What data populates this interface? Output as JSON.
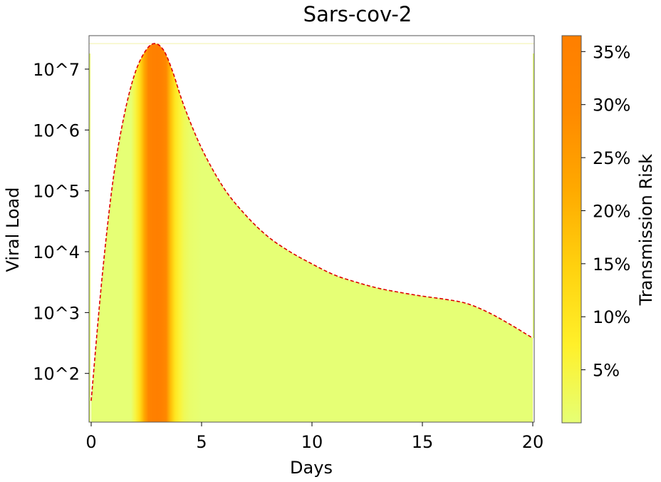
{
  "chart_data": {
    "type": "area",
    "title": "Sars-cov-2",
    "xlabel": "Days",
    "ylabel": "Viral Load",
    "colorbar_label": "Transmission Risk",
    "xlim": [
      0,
      20
    ],
    "ylim_log10": [
      1.2,
      7.55
    ],
    "y_scale": "log",
    "x_ticks": [
      0,
      5,
      10,
      15,
      20
    ],
    "x_tick_labels": [
      "0",
      "5",
      "10",
      "15",
      "20"
    ],
    "y_ticks_log10": [
      2,
      3,
      4,
      5,
      6,
      7
    ],
    "y_tick_labels": [
      "10^2",
      "10^3",
      "10^4",
      "10^5",
      "10^6",
      "10^7"
    ],
    "colorbar_range": [
      0,
      36.5
    ],
    "colorbar_ticks": [
      5,
      10,
      15,
      20,
      25,
      30,
      35
    ],
    "colorbar_tick_labels": [
      "5%",
      "10%",
      "15%",
      "20%",
      "25%",
      "30%",
      "35%"
    ],
    "colormap": [
      "#e6ff75",
      "#fff02a",
      "#ffd20f",
      "#ffaa00",
      "#ff8a00",
      "#ff7f00"
    ],
    "curve_color": "#dd0000",
    "viral_load_curve": {
      "x": [
        0,
        0.5,
        1,
        1.5,
        2,
        2.5,
        2.9,
        3.3,
        3.7,
        4.2,
        5,
        6,
        7,
        8,
        9,
        10,
        11,
        12,
        13,
        14,
        15,
        16,
        17,
        18,
        19,
        20
      ],
      "log10_y": [
        1.55,
        3.6,
        5.2,
        6.25,
        6.95,
        7.32,
        7.42,
        7.3,
        6.95,
        6.4,
        5.7,
        5.05,
        4.6,
        4.25,
        4.0,
        3.8,
        3.62,
        3.5,
        3.4,
        3.33,
        3.27,
        3.22,
        3.15,
        3.0,
        2.8,
        2.58
      ]
    },
    "transmission_risk": {
      "x": [
        0,
        1.8,
        2.0,
        2.2,
        2.4,
        2.6,
        2.8,
        3.0,
        3.2,
        3.4,
        3.6,
        3.8,
        4.0,
        4.2,
        4.5,
        5,
        20
      ],
      "percent": [
        0,
        0,
        5,
        12,
        22,
        33,
        36,
        36.5,
        35,
        30,
        18,
        10,
        6,
        3,
        1,
        0,
        0
      ]
    }
  }
}
